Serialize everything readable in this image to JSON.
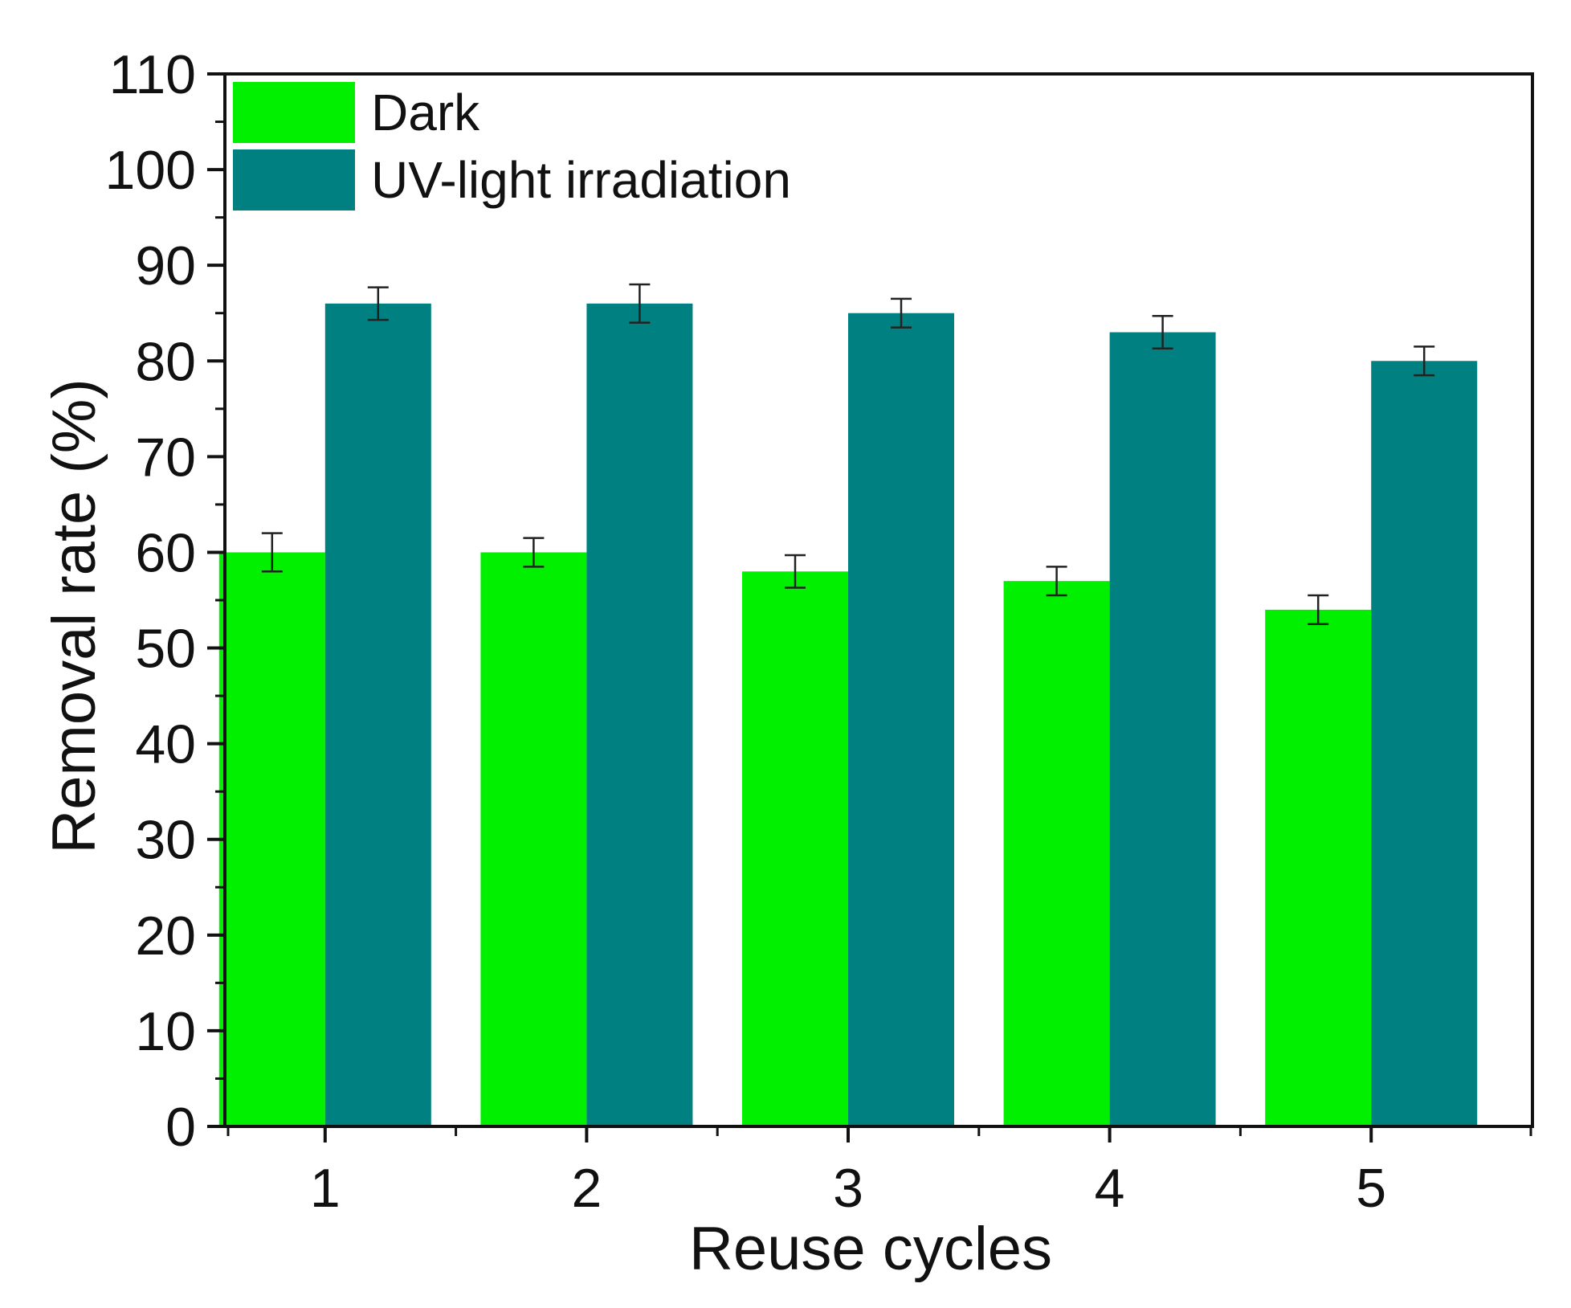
{
  "chart_data": {
    "type": "bar",
    "title": "",
    "xlabel": "Reuse cycles",
    "ylabel": "Removal rate (%)",
    "categories": [
      "1",
      "2",
      "3",
      "4",
      "5"
    ],
    "ylim": [
      0,
      110
    ],
    "y_major_ticks": [
      0,
      10,
      20,
      30,
      40,
      50,
      60,
      70,
      80,
      90,
      100,
      110
    ],
    "y_tick_labels": [
      "0",
      "10",
      "20",
      "30",
      "40",
      "50",
      "60",
      "70",
      "80",
      "90",
      "100",
      "110"
    ],
    "grid": false,
    "legend_position": "top-left",
    "series": [
      {
        "name": "Dark",
        "color": "#00f000",
        "values": [
          60,
          60,
          58,
          57,
          54
        ],
        "errors": [
          2.0,
          1.5,
          1.7,
          1.5,
          1.5
        ]
      },
      {
        "name": "UV-light irradiation",
        "color": "#008080",
        "values": [
          86,
          86,
          85,
          83,
          80
        ],
        "errors": [
          1.7,
          2.0,
          1.5,
          1.7,
          1.5
        ]
      }
    ]
  }
}
